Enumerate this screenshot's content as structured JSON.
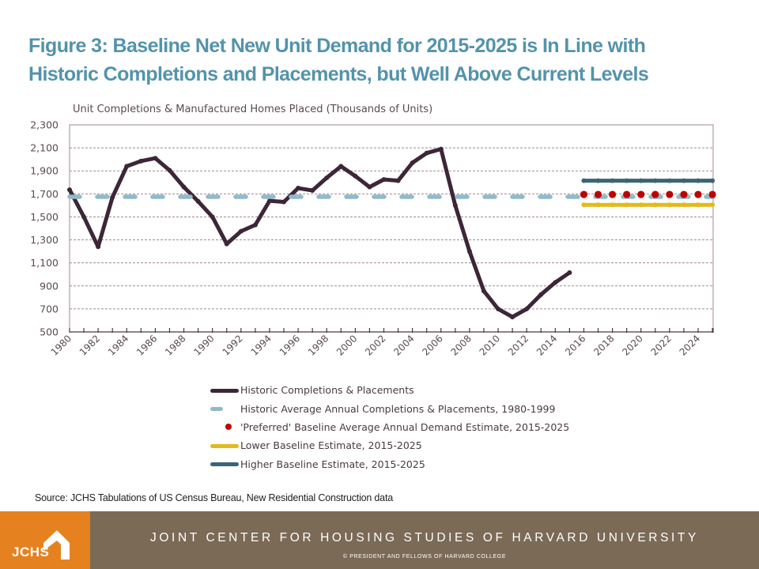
{
  "title": {
    "line1": "Figure 3: Baseline Net New Unit Demand for 2015-2025 is In Line with",
    "line2": "Historic Completions and Placements, but Well Above Current Levels"
  },
  "chart_data": {
    "type": "line",
    "title": "Figure 3: Baseline Net New Unit Demand for 2015-2025 is In Line with Historic Completions and Placements, but Well Above Current Levels",
    "ylabel": "Unit Completions & Manufactured Homes Placed (Thousands of Units)",
    "xlabel": "",
    "ylim": [
      500,
      2300
    ],
    "yticks": [
      "2,300",
      "2,100",
      "1,900",
      "1,700",
      "1,500",
      "1,300",
      "1,100",
      "900",
      "700",
      "500"
    ],
    "ytick_values": [
      2300,
      2100,
      1900,
      1700,
      1500,
      1300,
      1100,
      900,
      700,
      500
    ],
    "xlim": [
      1980,
      2025
    ],
    "xtick_labels": [
      "1980",
      "1982",
      "1984",
      "1986",
      "1988",
      "1990",
      "1992",
      "1994",
      "1996",
      "1998",
      "2000",
      "2002",
      "2004",
      "2006",
      "2008",
      "2010",
      "2012",
      "2014",
      "2016",
      "2018",
      "2020",
      "2022",
      "2024"
    ],
    "grid": "horizontal dashed",
    "legend_position": "bottom",
    "series": [
      {
        "name": "Historic Completions & Placements",
        "style": "line-markers",
        "color": "#3d2638",
        "x": [
          1980,
          1981,
          1982,
          1983,
          1984,
          1985,
          1986,
          1987,
          1988,
          1989,
          1990,
          1991,
          1992,
          1993,
          1994,
          1995,
          1996,
          1997,
          1998,
          1999,
          2000,
          2001,
          2002,
          2003,
          2004,
          2005,
          2006,
          2007,
          2008,
          2009,
          2010,
          2011,
          2012,
          2013,
          2014,
          2015
        ],
        "values": [
          1736,
          1500,
          1240,
          1670,
          1940,
          1985,
          2010,
          1905,
          1760,
          1635,
          1500,
          1265,
          1375,
          1430,
          1640,
          1630,
          1750,
          1730,
          1840,
          1940,
          1855,
          1760,
          1825,
          1815,
          1970,
          2055,
          2090,
          1600,
          1200,
          855,
          700,
          630,
          700,
          825,
          930,
          1015
        ]
      },
      {
        "name": "Historic Average Annual Completions & Placements, 1980-1999",
        "style": "dashed",
        "color": "#8fbacb",
        "x": [
          1980,
          2025
        ],
        "values": [
          1675,
          1675
        ]
      },
      {
        "name": "'Preferred' Baseline Average Annual Demand Estimate, 2015-2025",
        "style": "dots",
        "color": "#c00000",
        "x": [
          2016,
          2017,
          2018,
          2019,
          2020,
          2021,
          2022,
          2023,
          2024,
          2025
        ],
        "values": [
          1695,
          1695,
          1695,
          1695,
          1695,
          1695,
          1695,
          1695,
          1695,
          1695
        ]
      },
      {
        "name": "Lower Baseline Estimate, 2015-2025",
        "style": "line-markers",
        "color": "#e3b91c",
        "x": [
          2016,
          2017,
          2018,
          2019,
          2020,
          2021,
          2022,
          2023,
          2024,
          2025
        ],
        "values": [
          1605,
          1605,
          1605,
          1605,
          1605,
          1605,
          1605,
          1605,
          1605,
          1605
        ]
      },
      {
        "name": "Higher Baseline Estimate, 2015-2025",
        "style": "line-markers",
        "color": "#3c6474",
        "x": [
          2016,
          2017,
          2018,
          2019,
          2020,
          2021,
          2022,
          2023,
          2024,
          2025
        ],
        "values": [
          1815,
          1815,
          1815,
          1815,
          1815,
          1815,
          1815,
          1815,
          1815,
          1815
        ]
      }
    ]
  },
  "legend": [
    {
      "label": "Historic Completions & Placements",
      "kind": "line",
      "color": "#3d2638"
    },
    {
      "label": "Historic Average Annual Completions & Placements, 1980-1999",
      "kind": "dash",
      "color": "#8fbacb"
    },
    {
      "label": "'Preferred' Baseline Average Annual Demand Estimate, 2015-2025",
      "kind": "dot",
      "color": "#c00000"
    },
    {
      "label": "Lower Baseline Estimate, 2015-2025",
      "kind": "line",
      "color": "#e3b91c"
    },
    {
      "label": "Higher Baseline Estimate, 2015-2025",
      "kind": "line",
      "color": "#3c6474"
    }
  ],
  "source": "Source: JCHS Tabulations of US Census Bureau, New Residential Construction data",
  "footer": {
    "logo_text": "JCHS",
    "title": "JOINT CENTER FOR HOUSING STUDIES OF HARVARD UNIVERSITY",
    "copyright": "© PRESIDENT  AND FELLOWS  OF  HARVARD  COLLEGE"
  },
  "colors": {
    "title": "#5393ab",
    "footer_orange": "#e5821f",
    "footer_band": "#7a6a56"
  }
}
